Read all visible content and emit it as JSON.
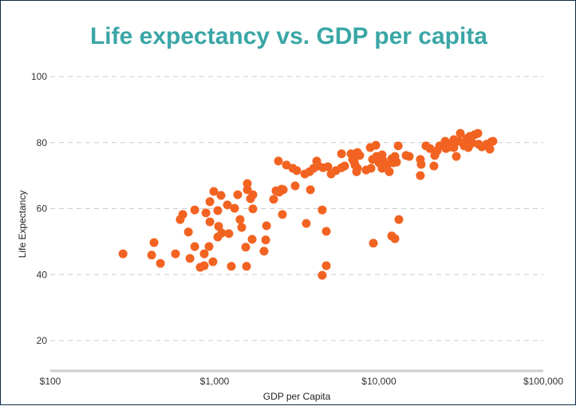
{
  "chart_data": {
    "type": "scatter",
    "title": "Life expectancy vs. GDP per capita",
    "xlabel": "GDP per Capita",
    "ylabel": "Life Expectancy",
    "xscale": "log",
    "xlim": [
      100,
      100000
    ],
    "ylim": [
      11,
      100
    ],
    "x_ticks": [
      100,
      1000,
      10000,
      100000
    ],
    "x_tick_labels": [
      "$100",
      "$1,000",
      "$10,000",
      "$100,000"
    ],
    "y_ticks": [
      20,
      40,
      60,
      80,
      100
    ],
    "y_tick_labels": [
      "20",
      "40",
      "60",
      "80",
      "100"
    ],
    "grid": "horizontal-dashed",
    "legend": "none",
    "colors": {
      "title": "#3aa6a6",
      "points": "#f26322",
      "grid": "#cccccc"
    },
    "points": [
      [
        277,
        46.3
      ],
      [
        428,
        49.7
      ],
      [
        414,
        45.9
      ],
      [
        468,
        43.4
      ],
      [
        578,
        46.3
      ],
      [
        618,
        56.7
      ],
      [
        640,
        58.2
      ],
      [
        692,
        52.9
      ],
      [
        757,
        48.5
      ],
      [
        708,
        44.9
      ],
      [
        757,
        59.6
      ],
      [
        885,
        58.7
      ],
      [
        936,
        56.0
      ],
      [
        1046,
        59.4
      ],
      [
        936,
        62.1
      ],
      [
        989,
        65.2
      ],
      [
        1094,
        64.0
      ],
      [
        1058,
        54.6
      ],
      [
        1106,
        52.6
      ],
      [
        1046,
        51.4
      ],
      [
        1222,
        52.4
      ],
      [
        865,
        46.3
      ],
      [
        925,
        48.5
      ],
      [
        818,
        42.2
      ],
      [
        865,
        42.7
      ],
      [
        977,
        43.9
      ],
      [
        1265,
        42.5
      ],
      [
        1196,
        61.1
      ],
      [
        1322,
        60.1
      ],
      [
        1383,
        64.2
      ],
      [
        1582,
        67.6
      ],
      [
        1582,
        65.7
      ],
      [
        1711,
        64.2
      ],
      [
        1653,
        63.0
      ],
      [
        1711,
        59.9
      ],
      [
        1429,
        56.7
      ],
      [
        1462,
        54.3
      ],
      [
        1691,
        50.7
      ],
      [
        1546,
        48.3
      ],
      [
        1563,
        42.5
      ],
      [
        2071,
        54.8
      ],
      [
        2048,
        50.5
      ],
      [
        2000,
        47.1
      ],
      [
        2287,
        62.8
      ],
      [
        2473,
        65.0
      ],
      [
        2614,
        65.7
      ],
      [
        2587,
        58.2
      ],
      [
        2445,
        74.4
      ],
      [
        2734,
        73.2
      ],
      [
        2990,
        72.2
      ],
      [
        3162,
        71.5
      ],
      [
        3539,
        70.5
      ],
      [
        3784,
        71.2
      ],
      [
        4002,
        72.2
      ],
      [
        4182,
        74.4
      ],
      [
        4279,
        72.9
      ],
      [
        4575,
        72.4
      ],
      [
        4890,
        72.7
      ],
      [
        5117,
        70.5
      ],
      [
        5472,
        71.5
      ],
      [
        5917,
        72.4
      ],
      [
        6185,
        72.9
      ],
      [
        5917,
        76.6
      ],
      [
        6763,
        76.6
      ],
      [
        6918,
        74.9
      ],
      [
        7149,
        73.2
      ],
      [
        7397,
        77.0
      ],
      [
        7311,
        71.2
      ],
      [
        2365,
        65.4
      ],
      [
        2558,
        65.9
      ],
      [
        3093,
        66.9
      ],
      [
        3828,
        65.7
      ],
      [
        3614,
        55.5
      ],
      [
        4784,
        53.1
      ],
      [
        4519,
        59.6
      ],
      [
        4784,
        42.7
      ],
      [
        4519,
        39.8
      ],
      [
        7638,
        76.1
      ],
      [
        7079,
        74.1
      ],
      [
        7397,
        72.2
      ],
      [
        8851,
        78.5
      ],
      [
        9572,
        79.2
      ],
      [
        8939,
        72.2
      ],
      [
        8356,
        71.7
      ],
      [
        9141,
        74.9
      ],
      [
        9664,
        75.8
      ],
      [
        10000,
        73.9
      ],
      [
        10450,
        76.3
      ],
      [
        10570,
        74.6
      ],
      [
        10450,
        72.2
      ],
      [
        11190,
        73.2
      ],
      [
        11560,
        71.2
      ],
      [
        11960,
        75.1
      ],
      [
        12510,
        75.8
      ],
      [
        12220,
        73.9
      ],
      [
        12790,
        74.1
      ],
      [
        13090,
        79.0
      ],
      [
        14630,
        76.1
      ],
      [
        15290,
        75.8
      ],
      [
        9243,
        49.5
      ],
      [
        11960,
        51.7
      ],
      [
        12510,
        50.9
      ],
      [
        13220,
        56.7
      ],
      [
        17870,
        74.9
      ],
      [
        18070,
        73.4
      ],
      [
        17870,
        70.0
      ],
      [
        19320,
        79.0
      ],
      [
        20450,
        78.2
      ],
      [
        21610,
        72.9
      ],
      [
        21880,
        76.1
      ],
      [
        22600,
        77.5
      ],
      [
        23380,
        79.0
      ],
      [
        25280,
        80.4
      ],
      [
        25580,
        78.2
      ],
      [
        26140,
        79.7
      ],
      [
        27970,
        79.9
      ],
      [
        28580,
        80.9
      ],
      [
        28580,
        78.5
      ],
      [
        29570,
        75.8
      ],
      [
        31260,
        82.8
      ],
      [
        30560,
        80.4
      ],
      [
        32360,
        79.9
      ],
      [
        33050,
        79.0
      ],
      [
        34580,
        80.7
      ],
      [
        34990,
        78.5
      ],
      [
        35760,
        81.9
      ],
      [
        36970,
        79.9
      ],
      [
        38270,
        82.4
      ],
      [
        40000,
        82.8
      ],
      [
        40460,
        79.5
      ],
      [
        42300,
        78.7
      ],
      [
        45200,
        79.5
      ],
      [
        47300,
        78.0
      ],
      [
        48300,
        80.2
      ],
      [
        49400,
        80.4
      ],
      [
        27050,
        78.7
      ],
      [
        34200,
        81.2
      ]
    ]
  }
}
